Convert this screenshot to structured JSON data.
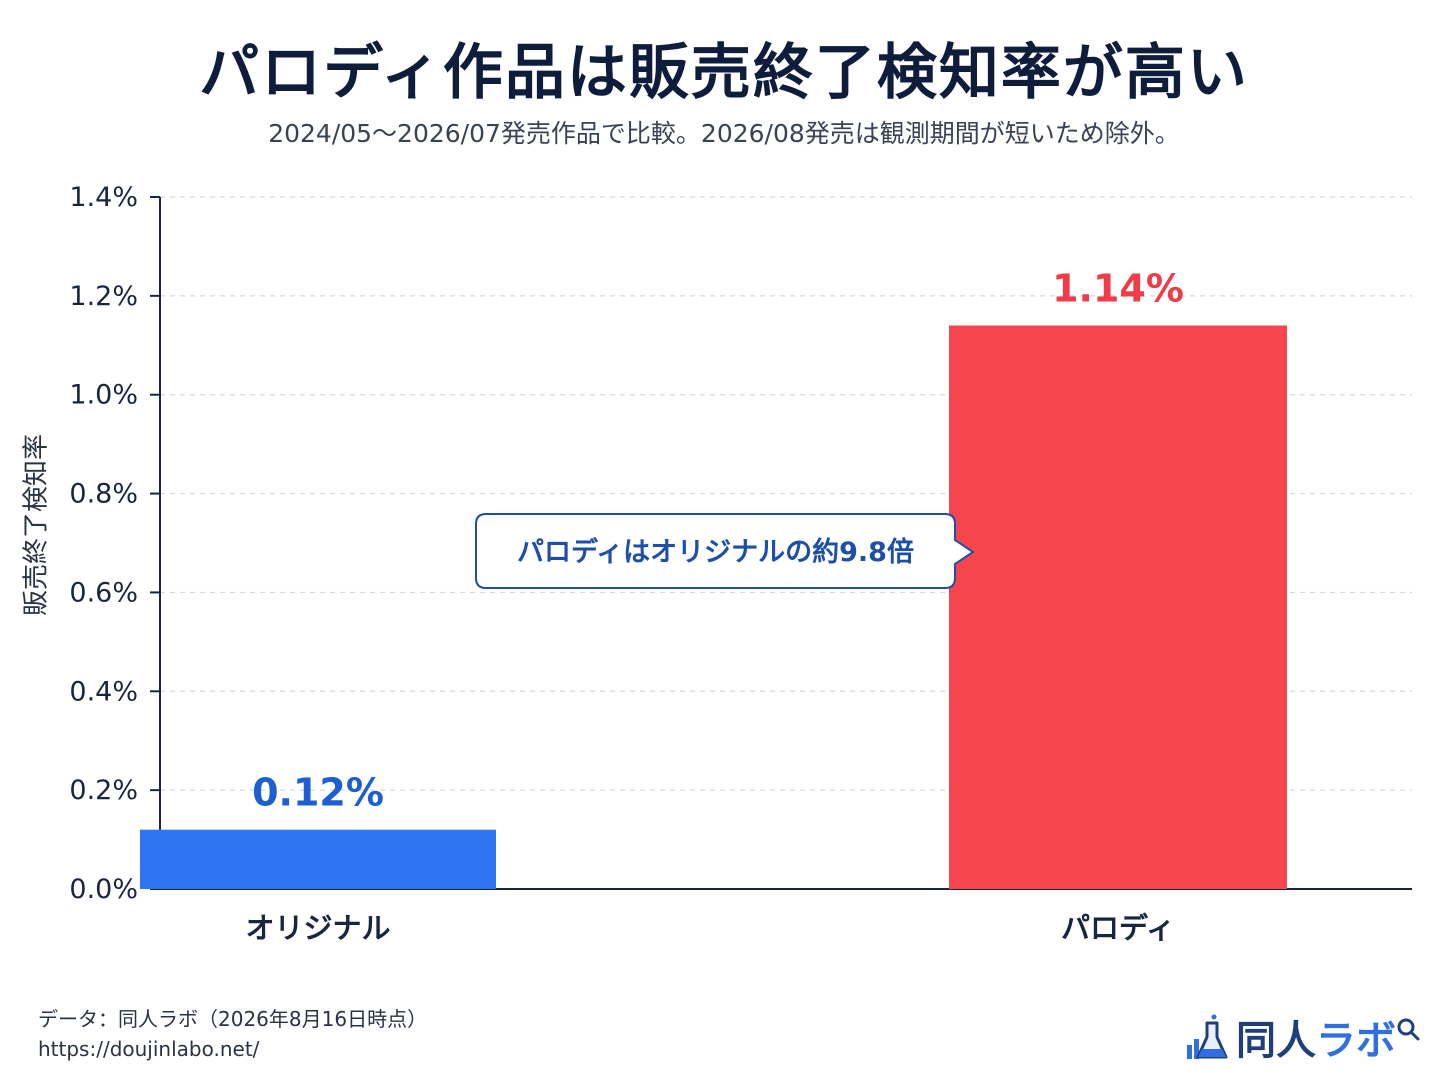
{
  "title": "パロディ作品は販売終了検知率が高い",
  "subtitle": "2024/05〜2026/07発売作品で比較。2026/08発売は観測期間が短いため除外。",
  "source": {
    "line1": "データ：同人ラボ（2026年8月16日時点）",
    "line2": "https://doujinlabo.net/"
  },
  "logo": {
    "text_main": "同人",
    "text_accent": "ラボ",
    "icons": [
      "bar-chart-icon",
      "flask-icon",
      "magnifier-icon"
    ]
  },
  "chart_data": {
    "type": "bar",
    "categories": [
      "オリジナル",
      "パロディ"
    ],
    "values": [
      0.12,
      1.14
    ],
    "value_labels": [
      "0.12%",
      "1.14%"
    ],
    "colors": [
      "#2f74f0",
      "#f5464e"
    ],
    "label_colors": [
      "#1d5fd0",
      "#f03c46"
    ],
    "ylabel": "販売終了検知率",
    "ylim": [
      0,
      1.4
    ],
    "yticks": [
      0.0,
      0.2,
      0.4,
      0.6,
      0.8,
      1.0,
      1.2,
      1.4
    ],
    "ytick_labels": [
      "0.0%",
      "0.2%",
      "0.4%",
      "0.6%",
      "0.8%",
      "1.0%",
      "1.2%",
      "1.4%"
    ],
    "grid": true,
    "annotation": "パロディはオリジナルの約9.8倍"
  }
}
